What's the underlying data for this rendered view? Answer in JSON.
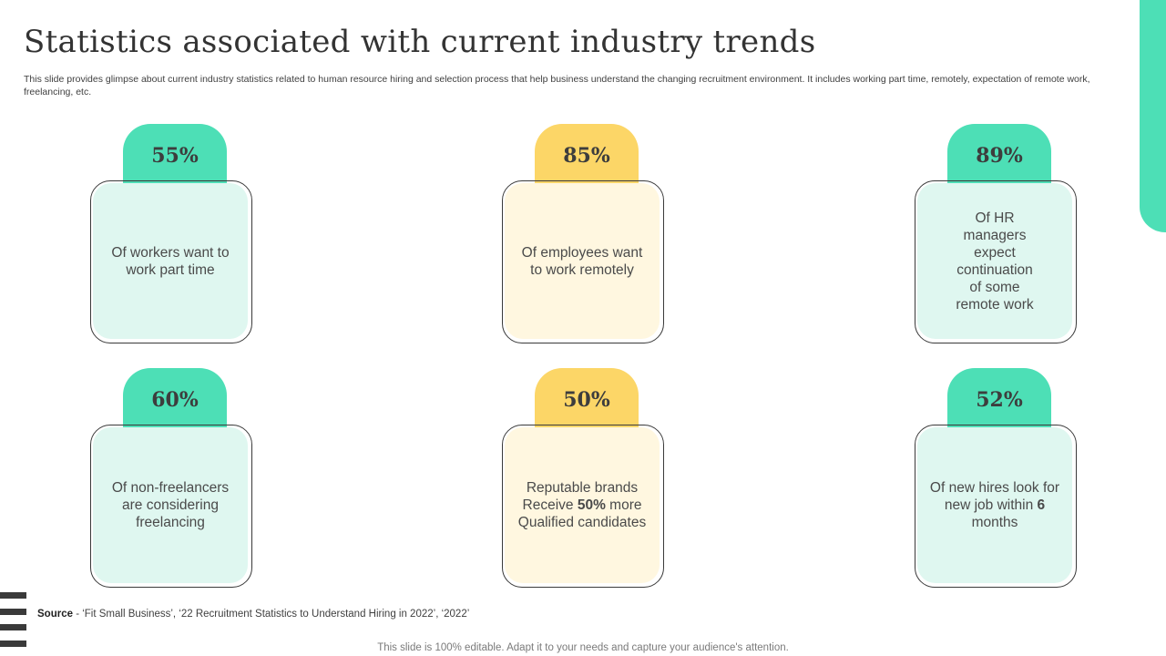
{
  "title": "Statistics associated with current industry trends",
  "subtitle": "This slide provides glimpse about current industry statistics related to human resource hiring and selection process that help business understand the changing recruitment environment. It includes working part time, remotely, expectation of remote work, freelancing, etc.",
  "colors": {
    "green": "#4ddfb6",
    "green_light": "#dff7f0",
    "yellow": "#fcd667",
    "yellow_light": "#fff7e0"
  },
  "cards": [
    {
      "percent": "55%",
      "text": "Of workers want to work part time",
      "color": "green"
    },
    {
      "percent": "85%",
      "text": "Of employees want to work remotely",
      "color": "yellow"
    },
    {
      "percent": "89%",
      "text": "Of HR managers expect continuation of some remote work",
      "color": "green"
    },
    {
      "percent": "60%",
      "text": "Of non-freelancers are considering freelancing",
      "color": "green"
    },
    {
      "percent": "50%",
      "text_parts": [
        "Reputable brands Receive ",
        "50%",
        " more Qualified candidates"
      ],
      "color": "yellow"
    },
    {
      "percent": "52%",
      "text_parts": [
        "Of new hires look for new job within ",
        "6",
        " months"
      ],
      "color": "green"
    }
  ],
  "source": {
    "label": "Source",
    "text": " - ‘Fit Small Business’, ‘22 Recruitment Statistics to Understand Hiring in 2022’, ‘2022’"
  },
  "footer": "This slide is 100% editable. Adapt it to your needs and capture your audience's attention."
}
